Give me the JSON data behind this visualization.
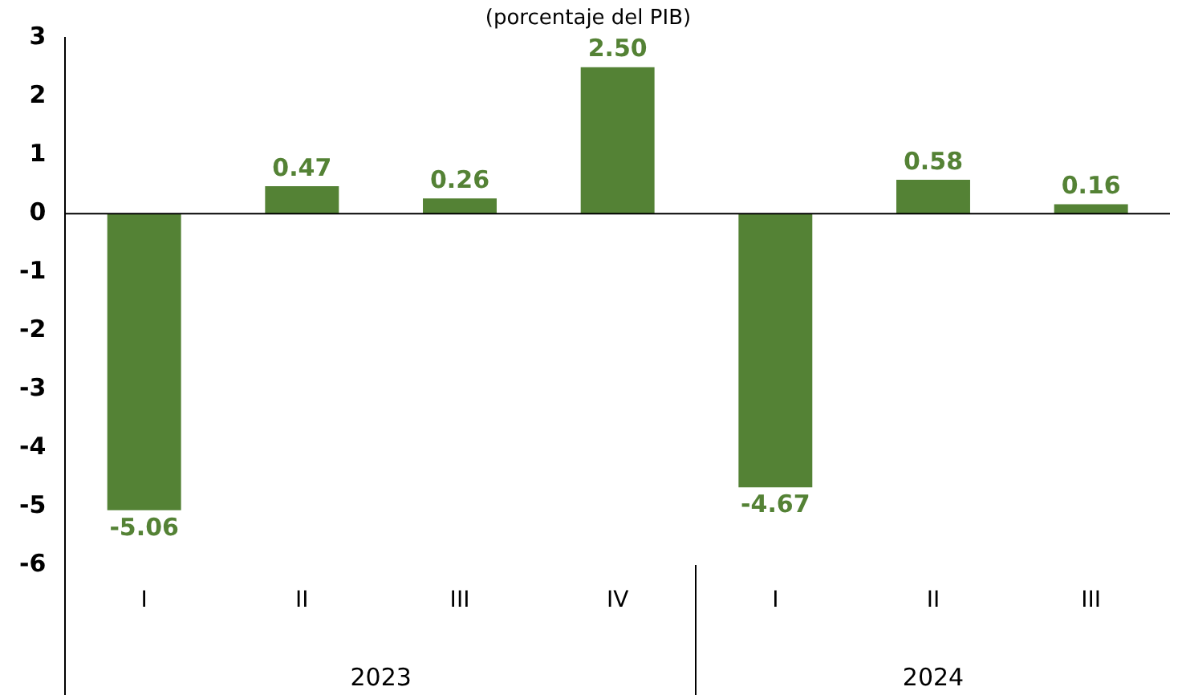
{
  "chart_data": {
    "type": "bar",
    "subtitle": "(porcentaje del PIB)",
    "categories": [
      "I",
      "II",
      "III",
      "IV",
      "I",
      "II",
      "III"
    ],
    "values": [
      -5.06,
      0.47,
      0.26,
      2.5,
      -4.67,
      0.58,
      0.16
    ],
    "value_labels": [
      "-5.06",
      "0.47",
      "0.26",
      "2.50",
      "-4.67",
      "0.58",
      "0.16"
    ],
    "color": "#548235",
    "ylim": [
      -6,
      3
    ],
    "yticks": [
      -6,
      -5,
      -4,
      -3,
      -2,
      -1,
      0,
      1,
      2,
      3
    ],
    "annotations": [
      "2023",
      "2024"
    ],
    "ref_lines": [
      {
        "axis": "y",
        "value": 0,
        "color": "#000000"
      }
    ],
    "grid": false,
    "legend": false
  }
}
